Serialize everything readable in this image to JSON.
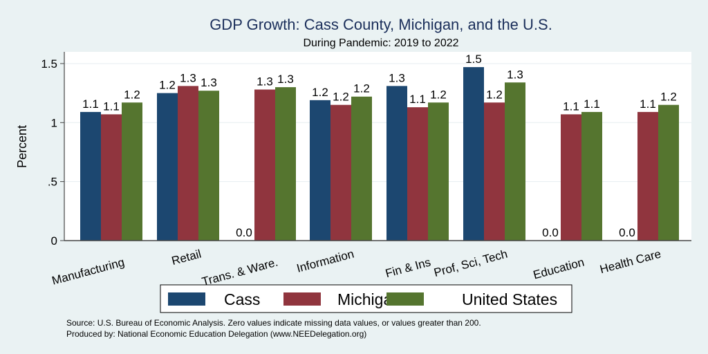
{
  "chart_data": {
    "type": "bar",
    "title": "GDP Growth: Cass County, Michigan, and the U.S.",
    "subtitle": "During Pandemic: 2019 to 2022",
    "xlabel": "",
    "ylabel": "Percent",
    "ylim": [
      0,
      1.6
    ],
    "yticks": [
      0,
      0.5,
      1,
      1.5
    ],
    "ytick_labels": [
      "0",
      ".5",
      "1",
      "1.5"
    ],
    "grid": true,
    "legend_position": "bottom",
    "categories": [
      "Manufacturing",
      "Retail",
      "Trans. & Ware.",
      "Information",
      "Fin & Ins",
      "Prof, Sci, Tech",
      "Education",
      "Health Care"
    ],
    "series": [
      {
        "name": "Cass",
        "color": "#1c4770",
        "values": [
          1.09,
          1.25,
          0.0,
          1.19,
          1.31,
          1.47,
          0.0,
          0.0
        ],
        "labels": [
          "1.1",
          "1.2",
          "0.0",
          "1.2",
          "1.3",
          "1.5",
          "0.0",
          "0.0"
        ]
      },
      {
        "name": "Michigan",
        "color": "#90353e",
        "values": [
          1.07,
          1.31,
          1.28,
          1.15,
          1.13,
          1.17,
          1.07,
          1.09
        ],
        "labels": [
          "1.1",
          "1.3",
          "1.3",
          "1.2",
          "1.1",
          "1.2",
          "1.1",
          "1.1"
        ]
      },
      {
        "name": "United States",
        "color": "#55752f",
        "values": [
          1.17,
          1.27,
          1.3,
          1.22,
          1.17,
          1.34,
          1.09,
          1.15
        ],
        "labels": [
          "1.2",
          "1.3",
          "1.3",
          "1.2",
          "1.2",
          "1.3",
          "1.1",
          "1.2"
        ]
      }
    ],
    "notes": [
      "Source: U.S. Bureau of Economic Analysis. Zero values indicate missing data values, or values greater than 200.",
      "Produced by: National Economic Education Delegation (www.NEEDelegation.org)"
    ]
  }
}
